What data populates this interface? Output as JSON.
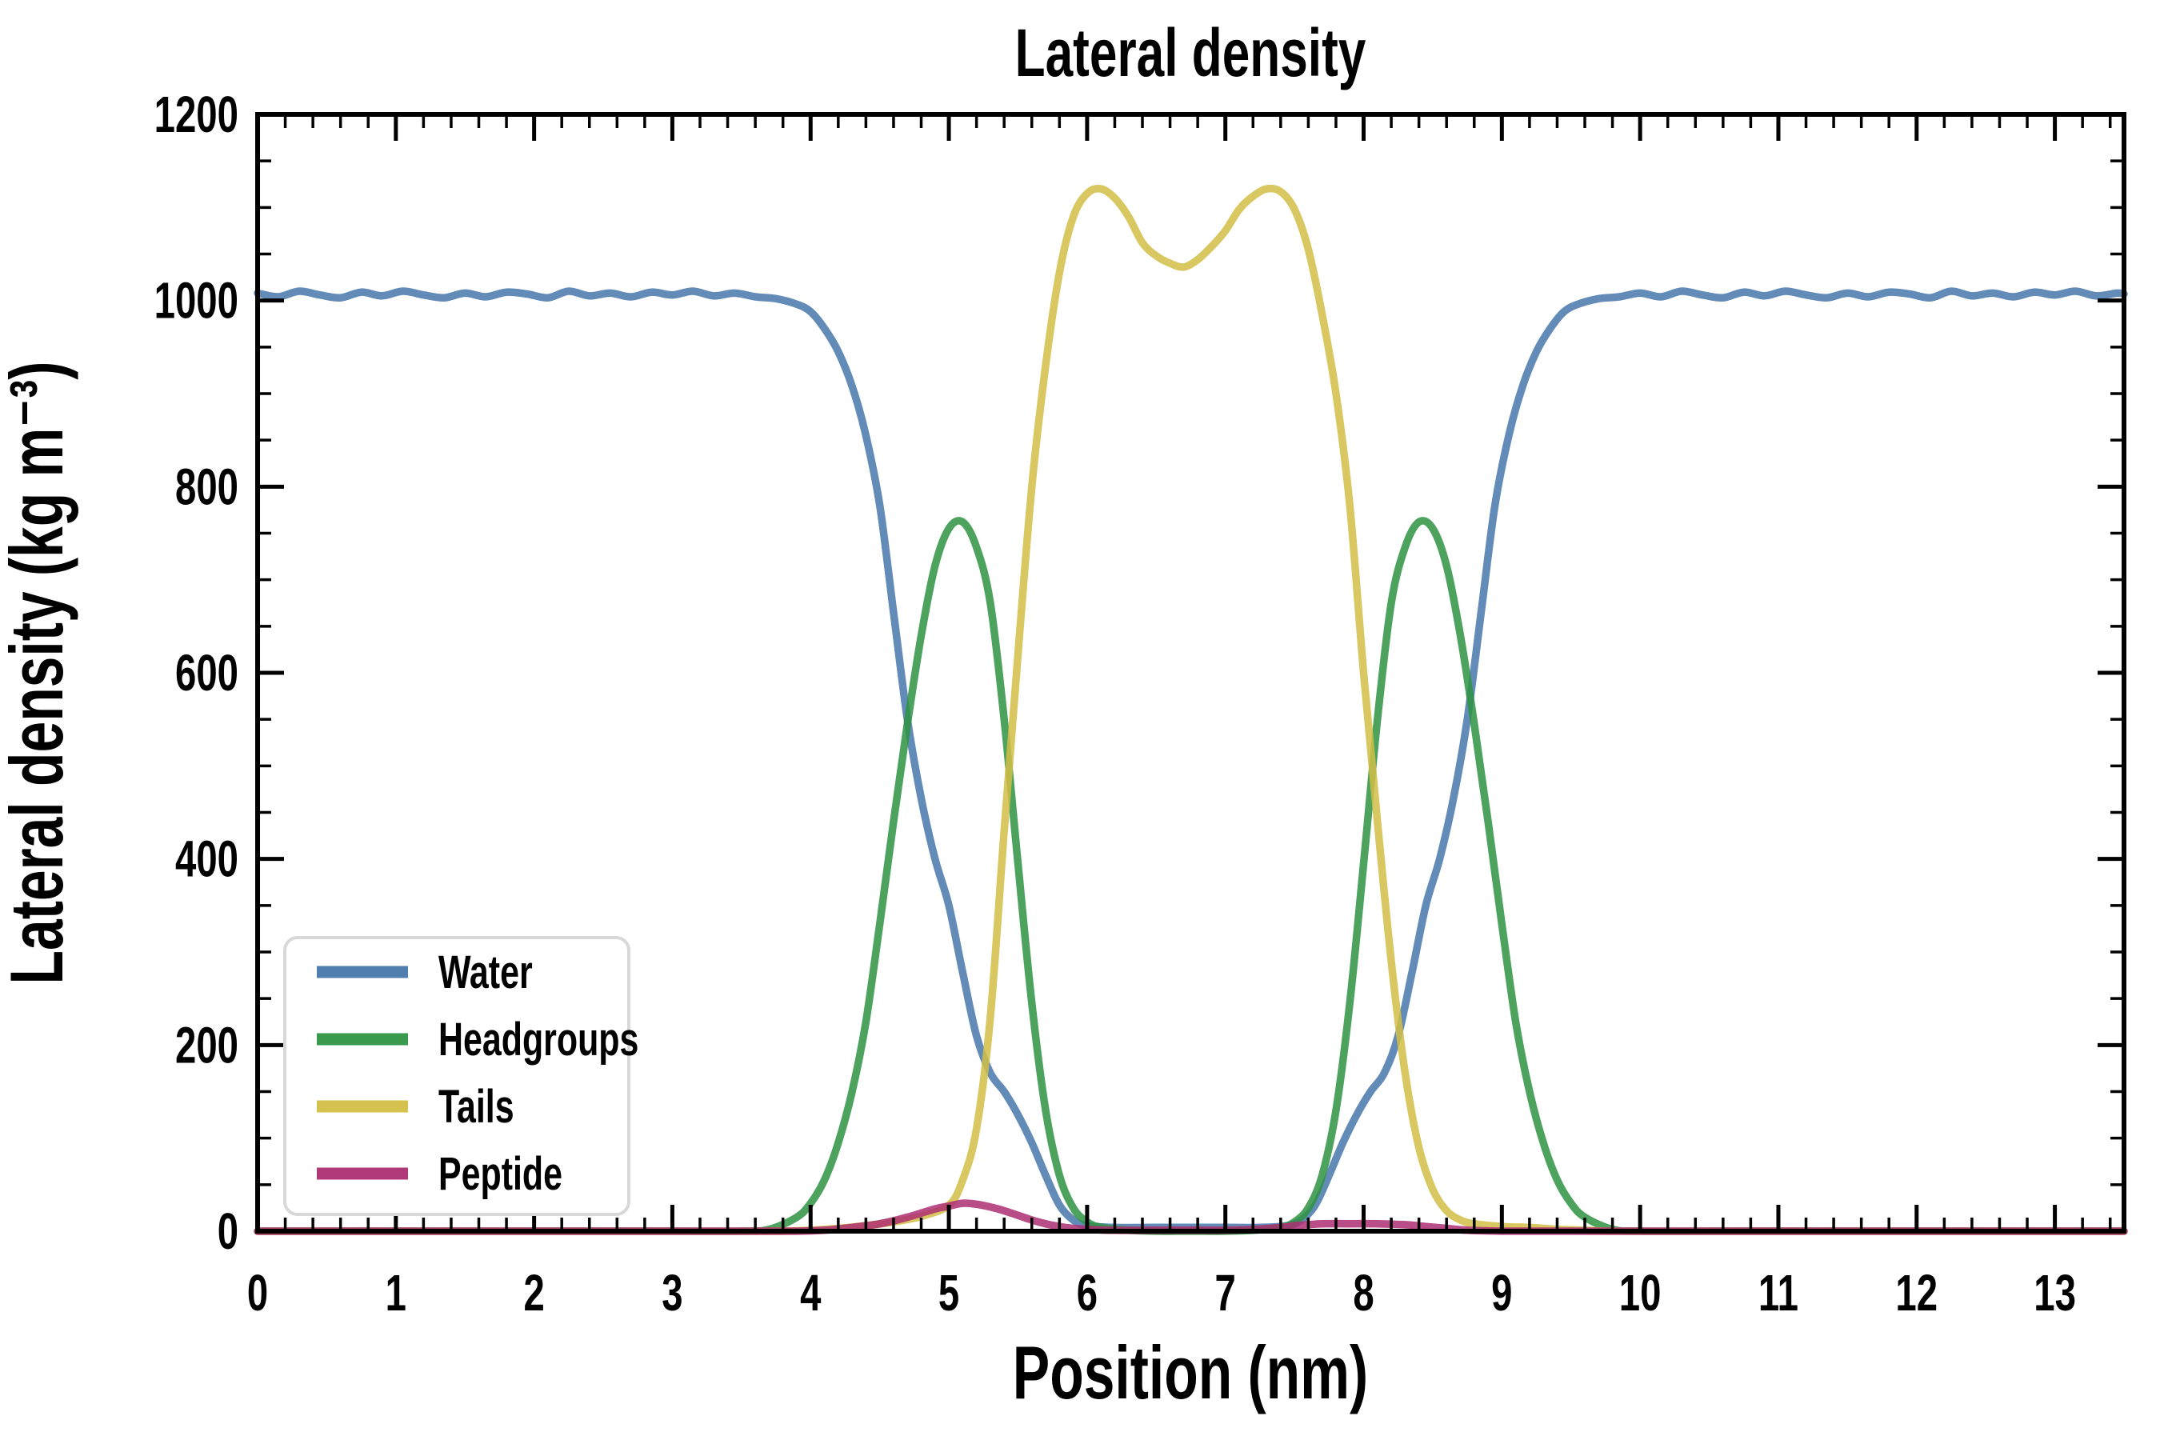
{
  "title": "Lateral density",
  "axes": {
    "xlabel": "Position (nm)",
    "ylabel": "Lateral density (kg m⁻³)"
  },
  "colors": {
    "frame": "#000000",
    "background": "#ffffff",
    "legend_border": "#d8d8d8",
    "water": "#4677ab",
    "headgroups": "#2e9342",
    "tails": "#d2be45",
    "peptide": "#ac2e72"
  },
  "legend": {
    "position": "lower left",
    "entries": [
      {
        "label": "Water",
        "color": "#4677ab"
      },
      {
        "label": "Headgroups",
        "color": "#2e9342"
      },
      {
        "label": "Tails",
        "color": "#d2be45"
      },
      {
        "label": "Peptide",
        "color": "#ac2e72"
      }
    ]
  },
  "chart_data": {
    "type": "line",
    "title": "Lateral density",
    "xlabel": "Position (nm)",
    "ylabel": "Lateral density (kg m⁻³)",
    "xlim": [
      0,
      13.5
    ],
    "ylim": [
      0,
      1200
    ],
    "x_major_ticks": [
      0,
      1,
      2,
      3,
      4,
      5,
      6,
      7,
      8,
      9,
      10,
      11,
      12,
      13
    ],
    "x_minor_step": 0.2,
    "y_major_ticks": [
      0,
      200,
      400,
      600,
      800,
      1000,
      1200
    ],
    "y_minor_step": 50,
    "grid": false,
    "legend_position": "lower left",
    "series": [
      {
        "name": "Water",
        "color": "#4677ab",
        "points": [
          [
            0.0,
            1008
          ],
          [
            0.15,
            1004
          ],
          [
            0.3,
            1010
          ],
          [
            0.45,
            1006
          ],
          [
            0.6,
            1003
          ],
          [
            0.75,
            1009
          ],
          [
            0.9,
            1005
          ],
          [
            1.05,
            1010
          ],
          [
            1.2,
            1006
          ],
          [
            1.35,
            1003
          ],
          [
            1.5,
            1008
          ],
          [
            1.65,
            1004
          ],
          [
            1.8,
            1009
          ],
          [
            1.95,
            1007
          ],
          [
            2.1,
            1003
          ],
          [
            2.25,
            1010
          ],
          [
            2.4,
            1005
          ],
          [
            2.55,
            1008
          ],
          [
            2.7,
            1004
          ],
          [
            2.85,
            1009
          ],
          [
            3.0,
            1006
          ],
          [
            3.15,
            1010
          ],
          [
            3.3,
            1005
          ],
          [
            3.45,
            1008
          ],
          [
            3.6,
            1004
          ],
          [
            3.75,
            1002
          ],
          [
            3.9,
            996
          ],
          [
            4.0,
            988
          ],
          [
            4.1,
            970
          ],
          [
            4.2,
            945
          ],
          [
            4.3,
            908
          ],
          [
            4.4,
            855
          ],
          [
            4.5,
            780
          ],
          [
            4.6,
            665
          ],
          [
            4.7,
            550
          ],
          [
            4.8,
            465
          ],
          [
            4.9,
            400
          ],
          [
            5.0,
            350
          ],
          [
            5.1,
            278
          ],
          [
            5.2,
            210
          ],
          [
            5.3,
            170
          ],
          [
            5.4,
            150
          ],
          [
            5.5,
            125
          ],
          [
            5.6,
            95
          ],
          [
            5.7,
            60
          ],
          [
            5.8,
            28
          ],
          [
            5.9,
            12
          ],
          [
            6.0,
            6
          ],
          [
            6.2,
            4
          ],
          [
            6.5,
            4
          ],
          [
            6.75,
            4
          ],
          [
            7.0,
            4
          ],
          [
            7.25,
            4
          ],
          [
            7.45,
            6
          ],
          [
            7.55,
            12
          ],
          [
            7.65,
            28
          ],
          [
            7.75,
            60
          ],
          [
            7.85,
            95
          ],
          [
            7.95,
            125
          ],
          [
            8.05,
            150
          ],
          [
            8.15,
            170
          ],
          [
            8.25,
            210
          ],
          [
            8.35,
            278
          ],
          [
            8.45,
            350
          ],
          [
            8.55,
            400
          ],
          [
            8.65,
            465
          ],
          [
            8.75,
            550
          ],
          [
            8.85,
            665
          ],
          [
            8.95,
            780
          ],
          [
            9.05,
            855
          ],
          [
            9.15,
            908
          ],
          [
            9.25,
            945
          ],
          [
            9.35,
            970
          ],
          [
            9.45,
            988
          ],
          [
            9.55,
            996
          ],
          [
            9.7,
            1002
          ],
          [
            9.85,
            1004
          ],
          [
            10.0,
            1008
          ],
          [
            10.15,
            1004
          ],
          [
            10.3,
            1010
          ],
          [
            10.45,
            1006
          ],
          [
            10.6,
            1003
          ],
          [
            10.75,
            1009
          ],
          [
            10.9,
            1005
          ],
          [
            11.05,
            1010
          ],
          [
            11.2,
            1006
          ],
          [
            11.35,
            1003
          ],
          [
            11.5,
            1008
          ],
          [
            11.65,
            1004
          ],
          [
            11.8,
            1009
          ],
          [
            11.95,
            1007
          ],
          [
            12.1,
            1003
          ],
          [
            12.25,
            1010
          ],
          [
            12.4,
            1005
          ],
          [
            12.55,
            1008
          ],
          [
            12.7,
            1004
          ],
          [
            12.85,
            1009
          ],
          [
            13.0,
            1006
          ],
          [
            13.15,
            1010
          ],
          [
            13.3,
            1005
          ],
          [
            13.45,
            1008
          ],
          [
            13.5,
            1007
          ]
        ]
      },
      {
        "name": "Headgroups",
        "color": "#2e9342",
        "points": [
          [
            0.0,
            0
          ],
          [
            0.5,
            0
          ],
          [
            1.0,
            0
          ],
          [
            1.5,
            0
          ],
          [
            2.0,
            0
          ],
          [
            2.5,
            0
          ],
          [
            3.0,
            0
          ],
          [
            3.5,
            0
          ],
          [
            3.7,
            2
          ],
          [
            3.9,
            15
          ],
          [
            4.0,
            30
          ],
          [
            4.1,
            55
          ],
          [
            4.2,
            95
          ],
          [
            4.3,
            150
          ],
          [
            4.4,
            225
          ],
          [
            4.5,
            330
          ],
          [
            4.6,
            440
          ],
          [
            4.7,
            545
          ],
          [
            4.8,
            640
          ],
          [
            4.9,
            715
          ],
          [
            5.0,
            755
          ],
          [
            5.1,
            762
          ],
          [
            5.2,
            735
          ],
          [
            5.3,
            675
          ],
          [
            5.4,
            550
          ],
          [
            5.5,
            395
          ],
          [
            5.6,
            245
          ],
          [
            5.7,
            130
          ],
          [
            5.8,
            60
          ],
          [
            5.9,
            25
          ],
          [
            6.0,
            10
          ],
          [
            6.1,
            4
          ],
          [
            6.3,
            1
          ],
          [
            6.5,
            0
          ],
          [
            6.75,
            0
          ],
          [
            7.0,
            0
          ],
          [
            7.2,
            1
          ],
          [
            7.4,
            4
          ],
          [
            7.5,
            10
          ],
          [
            7.6,
            25
          ],
          [
            7.7,
            60
          ],
          [
            7.8,
            130
          ],
          [
            7.9,
            245
          ],
          [
            8.0,
            395
          ],
          [
            8.1,
            550
          ],
          [
            8.2,
            675
          ],
          [
            8.3,
            735
          ],
          [
            8.4,
            762
          ],
          [
            8.5,
            755
          ],
          [
            8.6,
            715
          ],
          [
            8.7,
            640
          ],
          [
            8.8,
            545
          ],
          [
            8.9,
            440
          ],
          [
            9.0,
            330
          ],
          [
            9.1,
            225
          ],
          [
            9.2,
            150
          ],
          [
            9.3,
            95
          ],
          [
            9.4,
            55
          ],
          [
            9.5,
            30
          ],
          [
            9.6,
            15
          ],
          [
            9.8,
            2
          ],
          [
            10.0,
            0
          ],
          [
            10.5,
            0
          ],
          [
            11.0,
            0
          ],
          [
            11.5,
            0
          ],
          [
            12.0,
            0
          ],
          [
            12.5,
            0
          ],
          [
            13.0,
            0
          ],
          [
            13.5,
            0
          ]
        ]
      },
      {
        "name": "Tails",
        "color": "#d2be45",
        "points": [
          [
            0.0,
            0
          ],
          [
            0.5,
            0
          ],
          [
            1.0,
            0
          ],
          [
            1.5,
            0
          ],
          [
            2.0,
            0
          ],
          [
            2.5,
            0
          ],
          [
            3.0,
            0
          ],
          [
            3.5,
            0
          ],
          [
            3.8,
            0
          ],
          [
            4.0,
            1
          ],
          [
            4.2,
            3
          ],
          [
            4.4,
            6
          ],
          [
            4.6,
            10
          ],
          [
            4.8,
            16
          ],
          [
            5.0,
            28
          ],
          [
            5.1,
            55
          ],
          [
            5.2,
            110
          ],
          [
            5.3,
            230
          ],
          [
            5.4,
            430
          ],
          [
            5.5,
            620
          ],
          [
            5.6,
            800
          ],
          [
            5.7,
            930
          ],
          [
            5.8,
            1030
          ],
          [
            5.9,
            1090
          ],
          [
            6.0,
            1115
          ],
          [
            6.1,
            1120
          ],
          [
            6.2,
            1110
          ],
          [
            6.3,
            1090
          ],
          [
            6.4,
            1062
          ],
          [
            6.5,
            1048
          ],
          [
            6.6,
            1040
          ],
          [
            6.7,
            1036
          ],
          [
            6.8,
            1044
          ],
          [
            6.9,
            1058
          ],
          [
            7.0,
            1075
          ],
          [
            7.1,
            1098
          ],
          [
            7.2,
            1112
          ],
          [
            7.3,
            1120
          ],
          [
            7.4,
            1117
          ],
          [
            7.5,
            1098
          ],
          [
            7.6,
            1055
          ],
          [
            7.7,
            985
          ],
          [
            7.8,
            900
          ],
          [
            7.9,
            780
          ],
          [
            8.0,
            600
          ],
          [
            8.1,
            440
          ],
          [
            8.2,
            290
          ],
          [
            8.3,
            170
          ],
          [
            8.4,
            90
          ],
          [
            8.5,
            45
          ],
          [
            8.6,
            22
          ],
          [
            8.7,
            12
          ],
          [
            8.8,
            8
          ],
          [
            9.0,
            5
          ],
          [
            9.2,
            4
          ],
          [
            9.4,
            2
          ],
          [
            9.6,
            1
          ],
          [
            9.8,
            0
          ],
          [
            10.5,
            0
          ],
          [
            11.5,
            0
          ],
          [
            12.5,
            0
          ],
          [
            13.5,
            0
          ]
        ]
      },
      {
        "name": "Peptide",
        "color": "#ac2e72",
        "points": [
          [
            0.0,
            0
          ],
          [
            0.5,
            0
          ],
          [
            1.0,
            0
          ],
          [
            1.5,
            0
          ],
          [
            2.0,
            0
          ],
          [
            2.5,
            0
          ],
          [
            3.0,
            0
          ],
          [
            3.5,
            0
          ],
          [
            3.9,
            0
          ],
          [
            4.1,
            1
          ],
          [
            4.3,
            4
          ],
          [
            4.5,
            8
          ],
          [
            4.7,
            15
          ],
          [
            4.9,
            24
          ],
          [
            5.0,
            27
          ],
          [
            5.1,
            30
          ],
          [
            5.2,
            29
          ],
          [
            5.3,
            26
          ],
          [
            5.4,
            22
          ],
          [
            5.5,
            17
          ],
          [
            5.6,
            12
          ],
          [
            5.7,
            8
          ],
          [
            5.8,
            5
          ],
          [
            5.9,
            3
          ],
          [
            6.0,
            2
          ],
          [
            6.2,
            1
          ],
          [
            6.5,
            1
          ],
          [
            6.8,
            1
          ],
          [
            7.0,
            1
          ],
          [
            7.2,
            2
          ],
          [
            7.4,
            4
          ],
          [
            7.5,
            6
          ],
          [
            7.6,
            7
          ],
          [
            7.7,
            8
          ],
          [
            7.9,
            8
          ],
          [
            8.1,
            8
          ],
          [
            8.3,
            7
          ],
          [
            8.45,
            5
          ],
          [
            8.6,
            3
          ],
          [
            8.75,
            1
          ],
          [
            9.0,
            0
          ],
          [
            9.5,
            0
          ],
          [
            10.0,
            0
          ],
          [
            11.0,
            0
          ],
          [
            12.0,
            0
          ],
          [
            13.0,
            0
          ],
          [
            13.5,
            0
          ]
        ]
      }
    ]
  }
}
